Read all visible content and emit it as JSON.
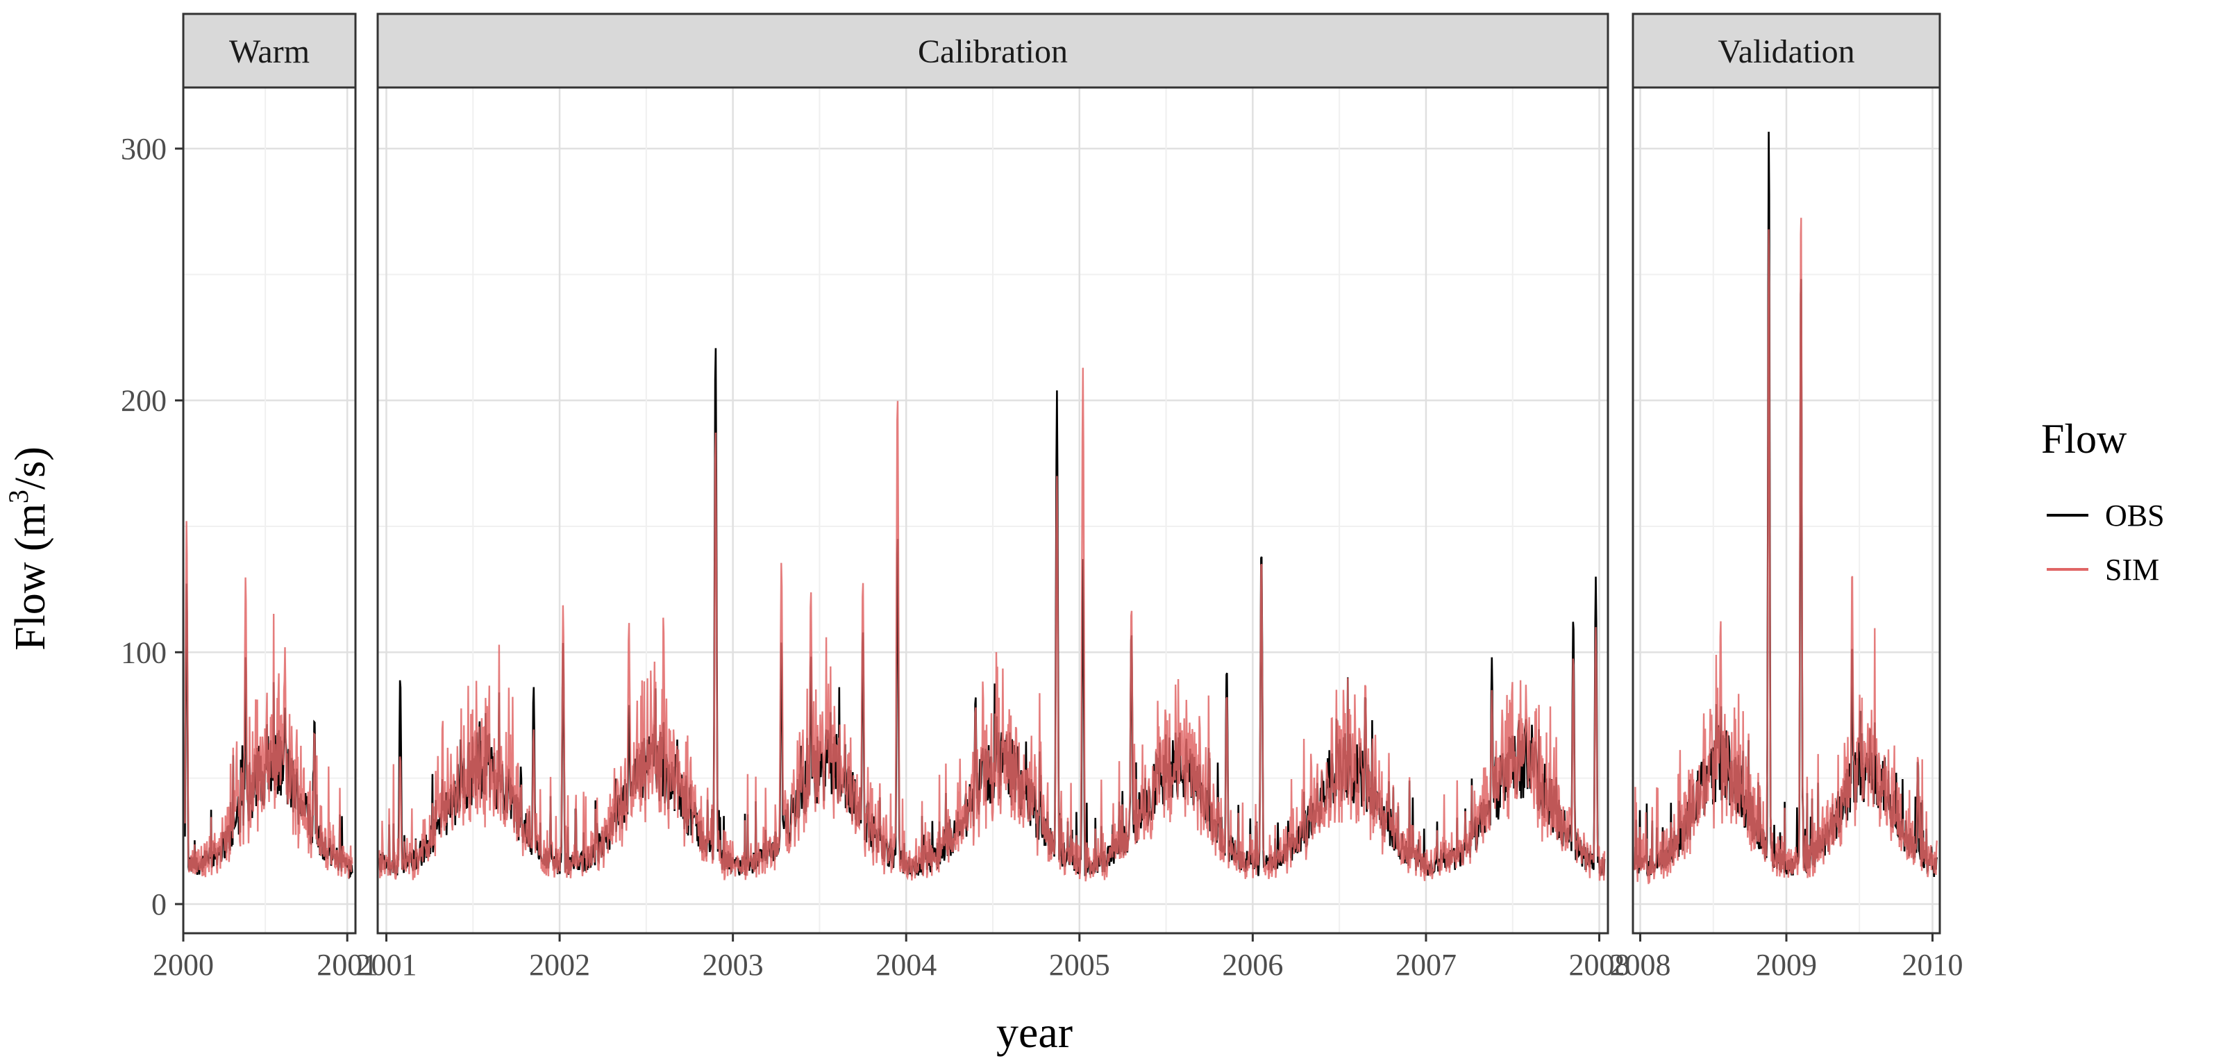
{
  "chart_data": {
    "type": "line",
    "xlabel": "year",
    "ylabel": "Flow (m³/s)",
    "ylabel_parts": {
      "prefix": "Flow (m",
      "superscript": "3",
      "suffix": "/s)"
    },
    "ylim": [
      0,
      325
    ],
    "y_ticks": [
      0,
      100,
      200,
      300
    ],
    "grid": true,
    "legend": {
      "title": "Flow",
      "placement": "right",
      "entries": [
        {
          "name": "OBS",
          "color": "#000000"
        },
        {
          "name": "SIM",
          "color": "#e06666"
        }
      ]
    },
    "panels": [
      {
        "name": "Warm",
        "xlim": [
          2000.0,
          2001.05
        ],
        "x_ticks": [
          "2000",
          "2001"
        ],
        "x_tick_values": [
          2000,
          2001
        ],
        "peaks": [
          {
            "t": 2000.02,
            "obs": 128,
            "sim": 153
          },
          {
            "t": 2000.38,
            "obs": 99,
            "sim": 131
          },
          {
            "t": 2000.62,
            "obs": 78,
            "sim": 102
          },
          {
            "t": 2000.8,
            "obs": 75,
            "sim": 70
          }
        ]
      },
      {
        "name": "Calibration",
        "xlim": [
          2000.95,
          2008.05
        ],
        "x_ticks": [
          "2001",
          "2002",
          "2003",
          "2004",
          "2005",
          "2006",
          "2007",
          "2008"
        ],
        "x_tick_values": [
          2001,
          2002,
          2003,
          2004,
          2005,
          2006,
          2007,
          2008
        ],
        "peaks": [
          {
            "t": 2001.08,
            "obs": 91,
            "sim": 60
          },
          {
            "t": 2001.85,
            "obs": 87,
            "sim": 70
          },
          {
            "t": 2002.02,
            "obs": 104,
            "sim": 119
          },
          {
            "t": 2002.4,
            "obs": 80,
            "sim": 113
          },
          {
            "t": 2002.9,
            "obs": 224,
            "sim": 190
          },
          {
            "t": 2003.28,
            "obs": 105,
            "sim": 137
          },
          {
            "t": 2003.45,
            "obs": 100,
            "sim": 126
          },
          {
            "t": 2003.75,
            "obs": 110,
            "sim": 130
          },
          {
            "t": 2003.95,
            "obs": 148,
            "sim": 204
          },
          {
            "t": 2004.4,
            "obs": 84,
            "sim": 80
          },
          {
            "t": 2004.87,
            "obs": 204,
            "sim": 170
          },
          {
            "t": 2005.02,
            "obs": 137,
            "sim": 213
          },
          {
            "t": 2005.3,
            "obs": 110,
            "sim": 120
          },
          {
            "t": 2005.85,
            "obs": 95,
            "sim": 85
          },
          {
            "t": 2006.05,
            "obs": 143,
            "sim": 140
          },
          {
            "t": 2006.65,
            "obs": 85,
            "sim": 90
          },
          {
            "t": 2007.38,
            "obs": 98,
            "sim": 85
          },
          {
            "t": 2007.85,
            "obs": 115,
            "sim": 100
          },
          {
            "t": 2007.98,
            "obs": 130,
            "sim": 110
          }
        ]
      },
      {
        "name": "Validation",
        "xlim": [
          2007.95,
          2010.05
        ],
        "x_ticks": [
          "2008",
          "2009",
          "2010"
        ],
        "x_tick_values": [
          2008,
          2009,
          2010
        ],
        "peaks": [
          {
            "t": 2008.55,
            "obs": 70,
            "sim": 114
          },
          {
            "t": 2008.88,
            "obs": 309,
            "sim": 270
          },
          {
            "t": 2009.1,
            "obs": 255,
            "sim": 280
          },
          {
            "t": 2009.45,
            "obs": 105,
            "sim": 135
          },
          {
            "t": 2009.9,
            "obs": 58,
            "sim": 60
          }
        ]
      }
    ]
  }
}
